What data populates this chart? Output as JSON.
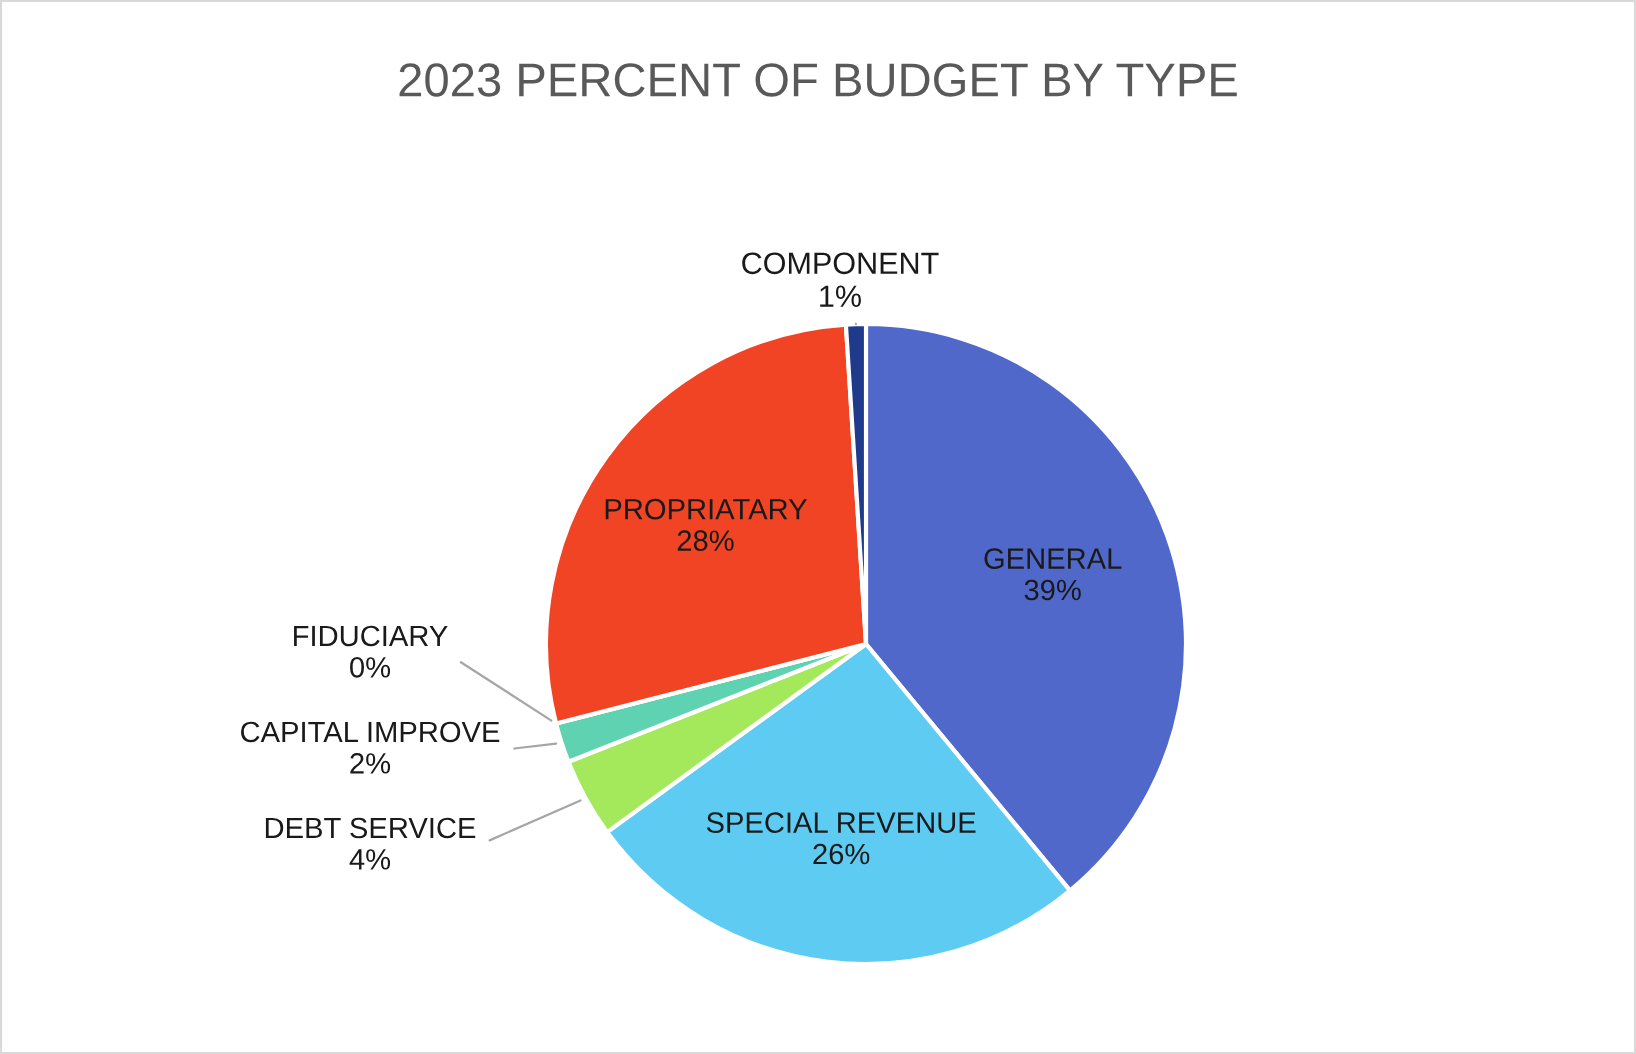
{
  "chart_data": {
    "type": "pie",
    "title": "2023 PERCENT OF BUDGET BY TYPE",
    "categories": [
      "GENERAL",
      "SPECIAL REVENUE",
      "DEBT SERVICE",
      "CAPITAL IMPROVE",
      "FIDUCIARY",
      "PROPRIATARY",
      "COMPONENT"
    ],
    "values": [
      39,
      26,
      4,
      2,
      0,
      28,
      1
    ],
    "colors": [
      "#5068c9",
      "#5ecbf3",
      "#a4e85b",
      "#5ed2b1",
      "#7f7f7f",
      "#f04425",
      "#1f3a8a"
    ],
    "value_labels": [
      "39%",
      "26%",
      "4%",
      "2%",
      "0%",
      "28%",
      "1%"
    ],
    "legend": false
  }
}
